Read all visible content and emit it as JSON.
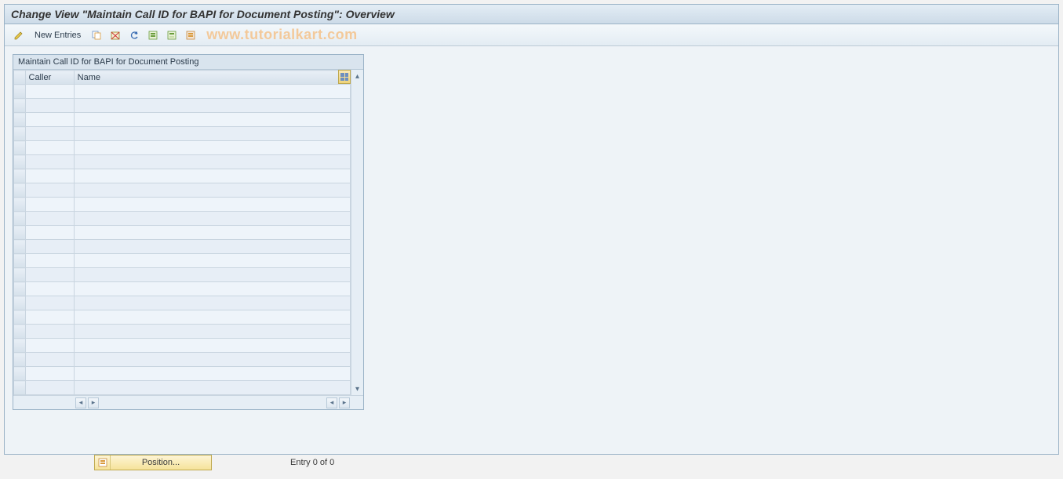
{
  "title": "Change View \"Maintain Call ID for BAPI for Document Posting\": Overview",
  "toolbar": {
    "new_entries_label": "New Entries"
  },
  "watermark": "www.tutorialkart.com",
  "panel": {
    "title": "Maintain Call ID for BAPI for Document Posting",
    "columns": {
      "caller": "Caller",
      "name": "Name"
    },
    "row_count": 22,
    "rows": []
  },
  "footer": {
    "position_label": "Position...",
    "entry_text": "Entry 0 of 0"
  },
  "colors": {
    "titlebar_bg_top": "#e3edf5",
    "titlebar_bg_bottom": "#cddbe8",
    "border": "#9bb3c7",
    "toolbar_bg_top": "#f4f8fb",
    "toolbar_bg_bottom": "#e3ecf3",
    "content_bg": "#eef3f7",
    "grid_header_top": "#e8eff6",
    "grid_header_bottom": "#d6e1eb",
    "cell_bg": "#eef4fa",
    "cell_bg_alt": "#e7eef6",
    "watermark": "#f3c99a",
    "gold_btn_top": "#fdf4d6",
    "gold_btn_bottom": "#f6e39a",
    "gold_border": "#bfa94e"
  }
}
